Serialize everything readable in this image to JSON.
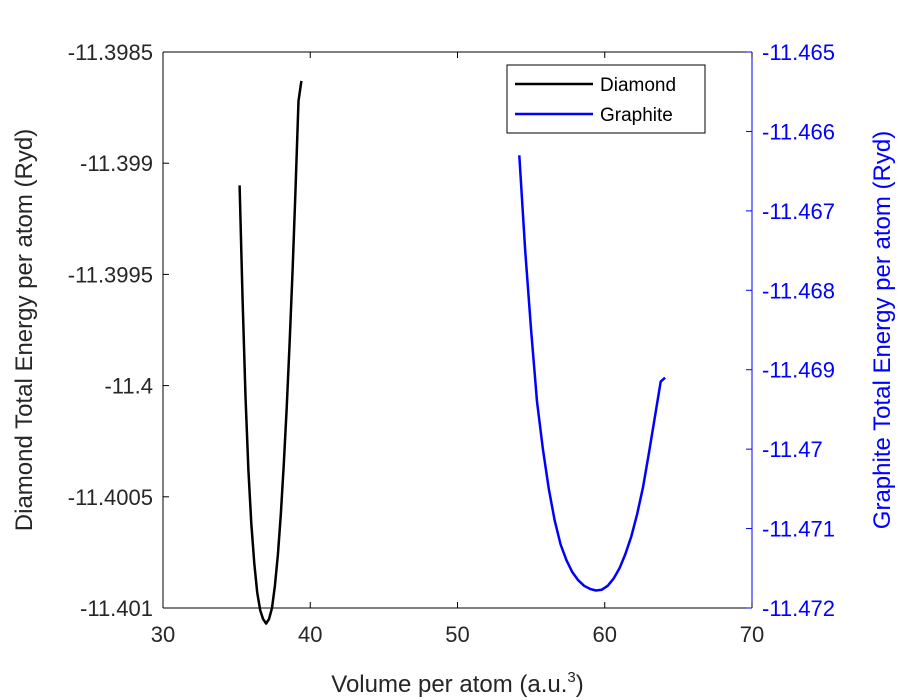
{
  "chart_data": {
    "type": "line",
    "title": "",
    "xlabel": "Volume per atom (a.u.",
    "xlabel_superscript": "3",
    "xlabel_suffix": ")",
    "ylabel_left": "Diamond Total Energy per atom (Ryd)",
    "ylabel_right": "Graphite Total Energy per atom (Ryd)",
    "xlim": [
      30,
      70
    ],
    "ylim_left": [
      -11.401,
      -11.3985
    ],
    "ylim_right": [
      -11.472,
      -11.465
    ],
    "x_ticks": [
      30,
      40,
      50,
      60,
      70
    ],
    "y_ticks_left": [
      -11.401,
      -11.4005,
      -11.4,
      -11.3995,
      -11.399,
      -11.3985
    ],
    "y_ticks_left_labels": [
      "-11.401",
      "-11.4005",
      "-11.4",
      "-11.3995",
      "-11.399",
      "-11.3985"
    ],
    "y_ticks_right": [
      -11.472,
      -11.471,
      -11.47,
      -11.469,
      -11.468,
      -11.467,
      -11.466,
      -11.465
    ],
    "y_ticks_right_labels": [
      "-11.472",
      "-11.471",
      "-11.47",
      "-11.469",
      "-11.468",
      "-11.467",
      "-11.466",
      "-11.465"
    ],
    "legend": {
      "placement": "top-right",
      "entries": [
        "Diamond",
        "Graphite"
      ]
    },
    "grid": false,
    "series": [
      {
        "name": "Diamond",
        "axis": "left",
        "color": "#000000",
        "x": [
          35.2,
          35.4,
          35.6,
          35.8,
          36.0,
          36.2,
          36.4,
          36.6,
          36.8,
          37.0,
          37.2,
          37.4,
          37.6,
          37.8,
          38.0,
          38.2,
          38.4,
          38.6,
          38.8,
          39.0,
          39.2,
          39.4
        ],
        "y": [
          -11.3991,
          -11.3996,
          -11.40005,
          -11.40038,
          -11.40062,
          -11.4008,
          -11.40093,
          -11.40101,
          -11.40105,
          -11.40107,
          -11.40105,
          -11.401,
          -11.4009,
          -11.40076,
          -11.40058,
          -11.40036,
          -11.4001,
          -11.39981,
          -11.39948,
          -11.39912,
          -11.39872,
          -11.39863
        ]
      },
      {
        "name": "Graphite",
        "axis": "right",
        "color": "#0000ff",
        "x": [
          54.2,
          54.6,
          55.0,
          55.4,
          55.8,
          56.2,
          56.6,
          57.0,
          57.4,
          57.8,
          58.2,
          58.6,
          59.0,
          59.4,
          59.8,
          60.2,
          60.6,
          61.0,
          61.4,
          61.8,
          62.2,
          62.6,
          63.0,
          63.4,
          63.8,
          64.1
        ],
        "y": [
          -11.4663,
          -11.4675,
          -11.4685,
          -11.4694,
          -11.47,
          -11.4705,
          -11.4709,
          -11.4712,
          -11.4714,
          -11.47155,
          -11.47165,
          -11.47172,
          -11.47176,
          -11.47178,
          -11.47177,
          -11.47172,
          -11.47163,
          -11.4715,
          -11.47132,
          -11.4711,
          -11.47082,
          -11.47048,
          -11.47005,
          -11.4696,
          -11.46915,
          -11.4691
        ]
      }
    ]
  }
}
